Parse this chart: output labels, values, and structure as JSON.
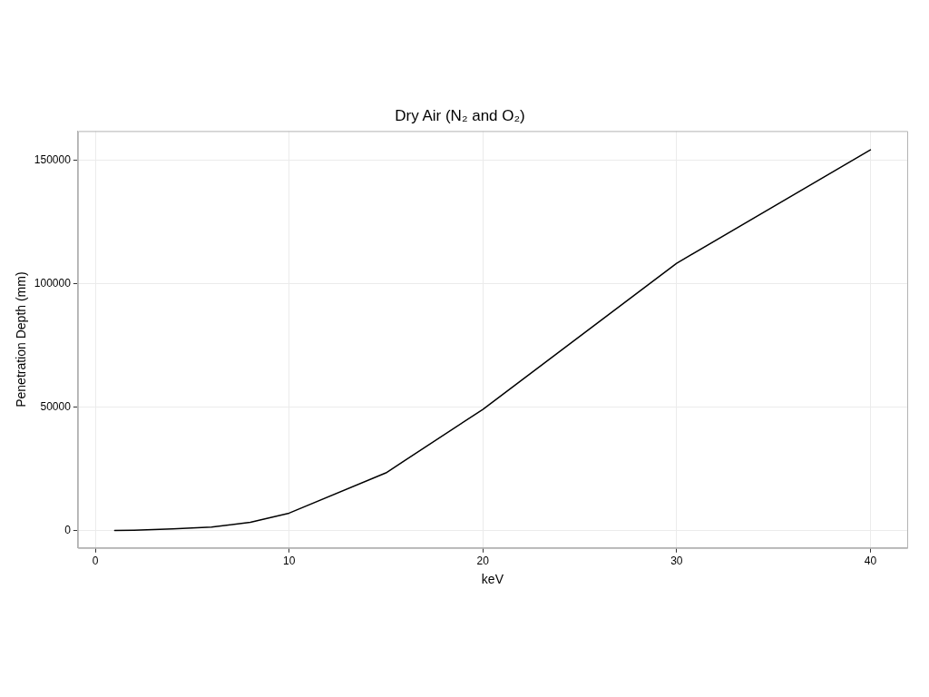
{
  "chart_data": {
    "type": "line",
    "title": "Dry Air (N₂ and O₂)",
    "xlabel": "keV",
    "ylabel": "Penetration Depth (mm)",
    "x": [
      1,
      2,
      4,
      6,
      8,
      10,
      15,
      20,
      30,
      40
    ],
    "series": [
      {
        "color": "#000000",
        "values": [
          50,
          200,
          700,
          1500,
          3400,
          7100,
          23400,
          49100,
          108200,
          154100
        ]
      }
    ],
    "xlim": [
      -0.9,
      41.9
    ],
    "xticks": [
      0,
      10,
      20,
      30,
      40
    ],
    "ylim": [
      -7000,
      161700
    ],
    "yticks": [
      0,
      50000,
      100000,
      150000
    ],
    "grid": true,
    "legend": false,
    "marker": "none",
    "line_style": "solid"
  }
}
